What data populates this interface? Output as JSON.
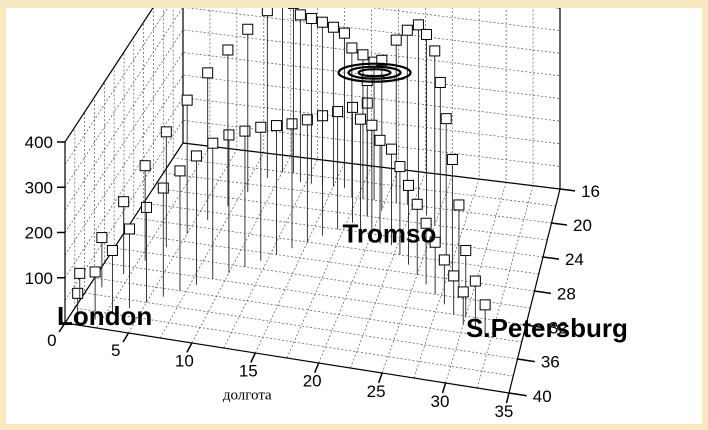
{
  "chart_data": {
    "type": "3d-bar",
    "xlabel": "долгота",
    "ylabel": "",
    "zlabel": "",
    "x_ticks": [
      "0",
      "5",
      "10",
      "15",
      "20",
      "25",
      "30",
      "35"
    ],
    "y_ticks": [
      "16",
      "20",
      "24",
      "28",
      "32",
      "36",
      "40"
    ],
    "z_ticks": [
      "100",
      "200",
      "300",
      "400"
    ],
    "xlim": [
      0,
      35
    ],
    "ylim": [
      16,
      40
    ],
    "zlim": [
      0,
      400
    ],
    "grid": true,
    "annotations": [
      {
        "text": "London",
        "x": 0,
        "y": 40
      },
      {
        "text": "Tromso",
        "x": 19,
        "y": 24
      },
      {
        "text": "S.Petersburg",
        "x": 35,
        "y": 32
      }
    ],
    "series": [
      {
        "values": [
          {
            "x": 1,
            "y": 40,
            "z": 70
          },
          {
            "x": 2,
            "y": 39,
            "z": 105
          },
          {
            "x": 3,
            "y": 38,
            "z": 140
          },
          {
            "x": 4,
            "y": 37,
            "z": 175
          },
          {
            "x": 5,
            "y": 36,
            "z": 210
          },
          {
            "x": 6,
            "y": 35,
            "z": 240
          },
          {
            "x": 7,
            "y": 34,
            "z": 265
          },
          {
            "x": 8,
            "y": 33,
            "z": 285
          },
          {
            "x": 9,
            "y": 32,
            "z": 300
          },
          {
            "x": 10,
            "y": 31,
            "z": 305
          },
          {
            "x": 11,
            "y": 30,
            "z": 300
          },
          {
            "x": 12,
            "y": 29,
            "z": 295
          },
          {
            "x": 13,
            "y": 28,
            "z": 285
          },
          {
            "x": 14,
            "y": 27,
            "z": 275
          },
          {
            "x": 15,
            "y": 26,
            "z": 270
          },
          {
            "x": 16,
            "y": 25,
            "z": 265
          },
          {
            "x": 17,
            "y": 24,
            "z": 260
          },
          {
            "x": 18,
            "y": 23,
            "z": 255
          },
          {
            "x": 19,
            "y": 22,
            "z": 250
          }
        ]
      },
      {
        "values": [
          {
            "x": 0,
            "y": 37,
            "z": 60
          },
          {
            "x": 1,
            "y": 35,
            "z": 110
          },
          {
            "x": 2,
            "y": 33,
            "z": 160
          },
          {
            "x": 3,
            "y": 31,
            "z": 210
          },
          {
            "x": 4,
            "y": 29,
            "z": 255
          },
          {
            "x": 5,
            "y": 27,
            "z": 295
          },
          {
            "x": 6,
            "y": 25,
            "z": 325
          },
          {
            "x": 7,
            "y": 23,
            "z": 345
          },
          {
            "x": 8,
            "y": 21,
            "z": 360
          },
          {
            "x": 9,
            "y": 19,
            "z": 370
          },
          {
            "x": 10,
            "y": 18,
            "z": 375
          },
          {
            "x": 11,
            "y": 18,
            "z": 375
          },
          {
            "x": 12,
            "y": 19,
            "z": 370
          },
          {
            "x": 13,
            "y": 19,
            "z": 365
          },
          {
            "x": 14,
            "y": 19,
            "z": 360
          },
          {
            "x": 15,
            "y": 19,
            "z": 352
          },
          {
            "x": 16,
            "y": 19,
            "z": 342
          },
          {
            "x": 17,
            "y": 20,
            "z": 330
          },
          {
            "x": 18,
            "y": 20,
            "z": 318
          },
          {
            "x": 19,
            "y": 20,
            "z": 305
          }
        ]
      },
      {
        "values": [
          {
            "x": 19,
            "y": 22,
            "z": 300
          },
          {
            "x": 20,
            "y": 21,
            "z": 330
          },
          {
            "x": 21,
            "y": 20,
            "z": 360
          },
          {
            "x": 22,
            "y": 20,
            "z": 385
          },
          {
            "x": 23,
            "y": 20,
            "z": 400
          },
          {
            "x": 24,
            "y": 21,
            "z": 400
          },
          {
            "x": 25,
            "y": 22,
            "z": 385
          },
          {
            "x": 26,
            "y": 24,
            "z": 355
          },
          {
            "x": 27,
            "y": 26,
            "z": 315
          },
          {
            "x": 28,
            "y": 28,
            "z": 265
          },
          {
            "x": 29,
            "y": 30,
            "z": 205
          },
          {
            "x": 30,
            "y": 32,
            "z": 145
          },
          {
            "x": 31,
            "y": 33,
            "z": 100
          },
          {
            "x": 32,
            "y": 34,
            "z": 70
          }
        ]
      },
      {
        "values": [
          {
            "x": 19,
            "y": 24,
            "z": 250
          },
          {
            "x": 20,
            "y": 24,
            "z": 240
          },
          {
            "x": 21,
            "y": 25,
            "z": 228
          },
          {
            "x": 22,
            "y": 25,
            "z": 212
          },
          {
            "x": 23,
            "y": 26,
            "z": 195
          },
          {
            "x": 24,
            "y": 27,
            "z": 175
          },
          {
            "x": 25,
            "y": 28,
            "z": 155
          },
          {
            "x": 26,
            "y": 29,
            "z": 135
          },
          {
            "x": 27,
            "y": 30,
            "z": 115
          },
          {
            "x": 28,
            "y": 31,
            "z": 98
          },
          {
            "x": 29,
            "y": 32,
            "z": 85
          },
          {
            "x": 30,
            "y": 33,
            "z": 72
          }
        ]
      }
    ]
  }
}
